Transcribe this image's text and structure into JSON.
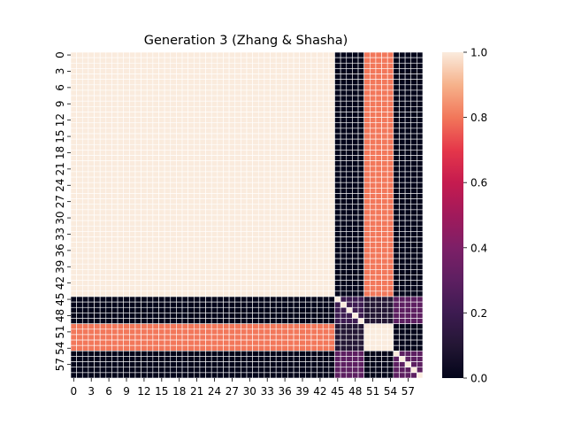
{
  "chart_data": {
    "type": "heatmap",
    "title": "Generation 3 (Zhang & Shasha)",
    "xlabel": "",
    "ylabel": "",
    "n_rows": 60,
    "n_cols": 60,
    "x_tick_labels": [
      "0",
      "3",
      "6",
      "9",
      "12",
      "15",
      "18",
      "21",
      "24",
      "27",
      "30",
      "33",
      "36",
      "39",
      "42",
      "45",
      "48",
      "51",
      "54",
      "57"
    ],
    "y_tick_labels": [
      "0",
      "3",
      "6",
      "9",
      "12",
      "15",
      "18",
      "21",
      "24",
      "27",
      "30",
      "33",
      "36",
      "39",
      "42",
      "45",
      "48",
      "51",
      "54",
      "57"
    ],
    "colorbar": {
      "range": [
        0.0,
        1.0
      ],
      "tick_labels": [
        "0.0",
        "0.2",
        "0.4",
        "0.6",
        "0.8",
        "1.0"
      ],
      "colormap": "rocket"
    },
    "grid": "white cell borders",
    "legend": "colorbar right",
    "block_structure": [
      {
        "rows": [
          0,
          44
        ],
        "cols": [
          0,
          44
        ],
        "value": 1.0
      },
      {
        "rows": [
          0,
          44
        ],
        "cols": [
          45,
          49
        ],
        "value": 0.0
      },
      {
        "rows": [
          0,
          44
        ],
        "cols": [
          50,
          54
        ],
        "value": 0.8
      },
      {
        "rows": [
          0,
          44
        ],
        "cols": [
          55,
          59
        ],
        "value": 0.0
      },
      {
        "rows": [
          45,
          49
        ],
        "cols": [
          0,
          44
        ],
        "value": 0.0
      },
      {
        "rows": [
          45,
          49
        ],
        "cols": [
          45,
          49
        ],
        "value": 0.2
      },
      {
        "rows": [
          45,
          49
        ],
        "cols": [
          50,
          54
        ],
        "value": 0.1
      },
      {
        "rows": [
          45,
          49
        ],
        "cols": [
          55,
          59
        ],
        "value": 0.3
      },
      {
        "rows": [
          50,
          54
        ],
        "cols": [
          0,
          44
        ],
        "value": 0.8
      },
      {
        "rows": [
          50,
          54
        ],
        "cols": [
          45,
          49
        ],
        "value": 0.1
      },
      {
        "rows": [
          50,
          54
        ],
        "cols": [
          50,
          54
        ],
        "value": 1.0
      },
      {
        "rows": [
          50,
          54
        ],
        "cols": [
          55,
          59
        ],
        "value": 0.0
      },
      {
        "rows": [
          55,
          59
        ],
        "cols": [
          0,
          44
        ],
        "value": 0.0
      },
      {
        "rows": [
          55,
          59
        ],
        "cols": [
          45,
          49
        ],
        "value": 0.3
      },
      {
        "rows": [
          55,
          59
        ],
        "cols": [
          50,
          54
        ],
        "value": 0.0
      },
      {
        "rows": [
          55,
          59
        ],
        "cols": [
          55,
          59
        ],
        "value": 0.3
      }
    ],
    "diagonal_value": 1.0
  }
}
